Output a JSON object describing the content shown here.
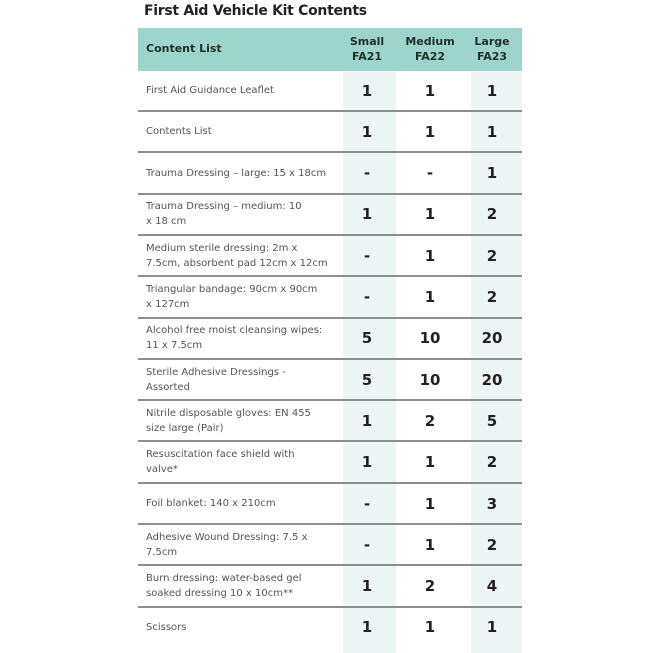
{
  "title": "First Aid Vehicle Kit Contents",
  "colors": {
    "header": "#9dd5cc",
    "column_shade": "#eef6f5",
    "divider": "#8a8f8f"
  },
  "header": {
    "content_list": "Content List",
    "columns": [
      "Small\nFA21",
      "Medium\nFA22",
      "Large\nFA23"
    ]
  },
  "rows": [
    {
      "label": "First Aid Guidance Leaflet",
      "values": [
        "1",
        "1",
        "1"
      ]
    },
    {
      "label": "Contents List",
      "values": [
        "1",
        "1",
        "1"
      ]
    },
    {
      "label": "Trauma Dressing – large: 15 x 18cm",
      "values": [
        "-",
        "-",
        "1"
      ]
    },
    {
      "label": "Trauma Dressing – medium: 10\nx 18 cm",
      "values": [
        "1",
        "1",
        "2"
      ]
    },
    {
      "label": "Medium sterile dressing: 2m x\n7.5cm, absorbent pad 12cm x 12cm",
      "values": [
        "-",
        "1",
        "2"
      ]
    },
    {
      "label": "Triangular bandage: 90cm x 90cm\nx 127cm",
      "values": [
        "-",
        "1",
        "2"
      ]
    },
    {
      "label": "Alcohol free moist cleansing wipes:\n11 x 7.5cm",
      "values": [
        "5",
        "10",
        "20"
      ]
    },
    {
      "label": "Sterile Adhesive Dressings -\nAssorted",
      "values": [
        "5",
        "10",
        "20"
      ]
    },
    {
      "label": "Nitrile disposable gloves: EN 455\nsize large  (Pair)",
      "values": [
        "1",
        "2",
        "5"
      ]
    },
    {
      "label": "Resuscitation face shield with\nvalve*",
      "values": [
        "1",
        "1",
        "2"
      ]
    },
    {
      "label": "Foil blanket: 140 x 210cm",
      "values": [
        "-",
        "1",
        "3"
      ]
    },
    {
      "label": "Adhesive Wound Dressing: 7.5 x\n7.5cm",
      "values": [
        "-",
        "1",
        "2"
      ]
    },
    {
      "label": "Burn dressing: water-based gel\nsoaked dressing 10 x 10cm**",
      "values": [
        "1",
        "2",
        "4"
      ]
    },
    {
      "label": "Scissors",
      "values": [
        "1",
        "1",
        "1"
      ]
    }
  ]
}
